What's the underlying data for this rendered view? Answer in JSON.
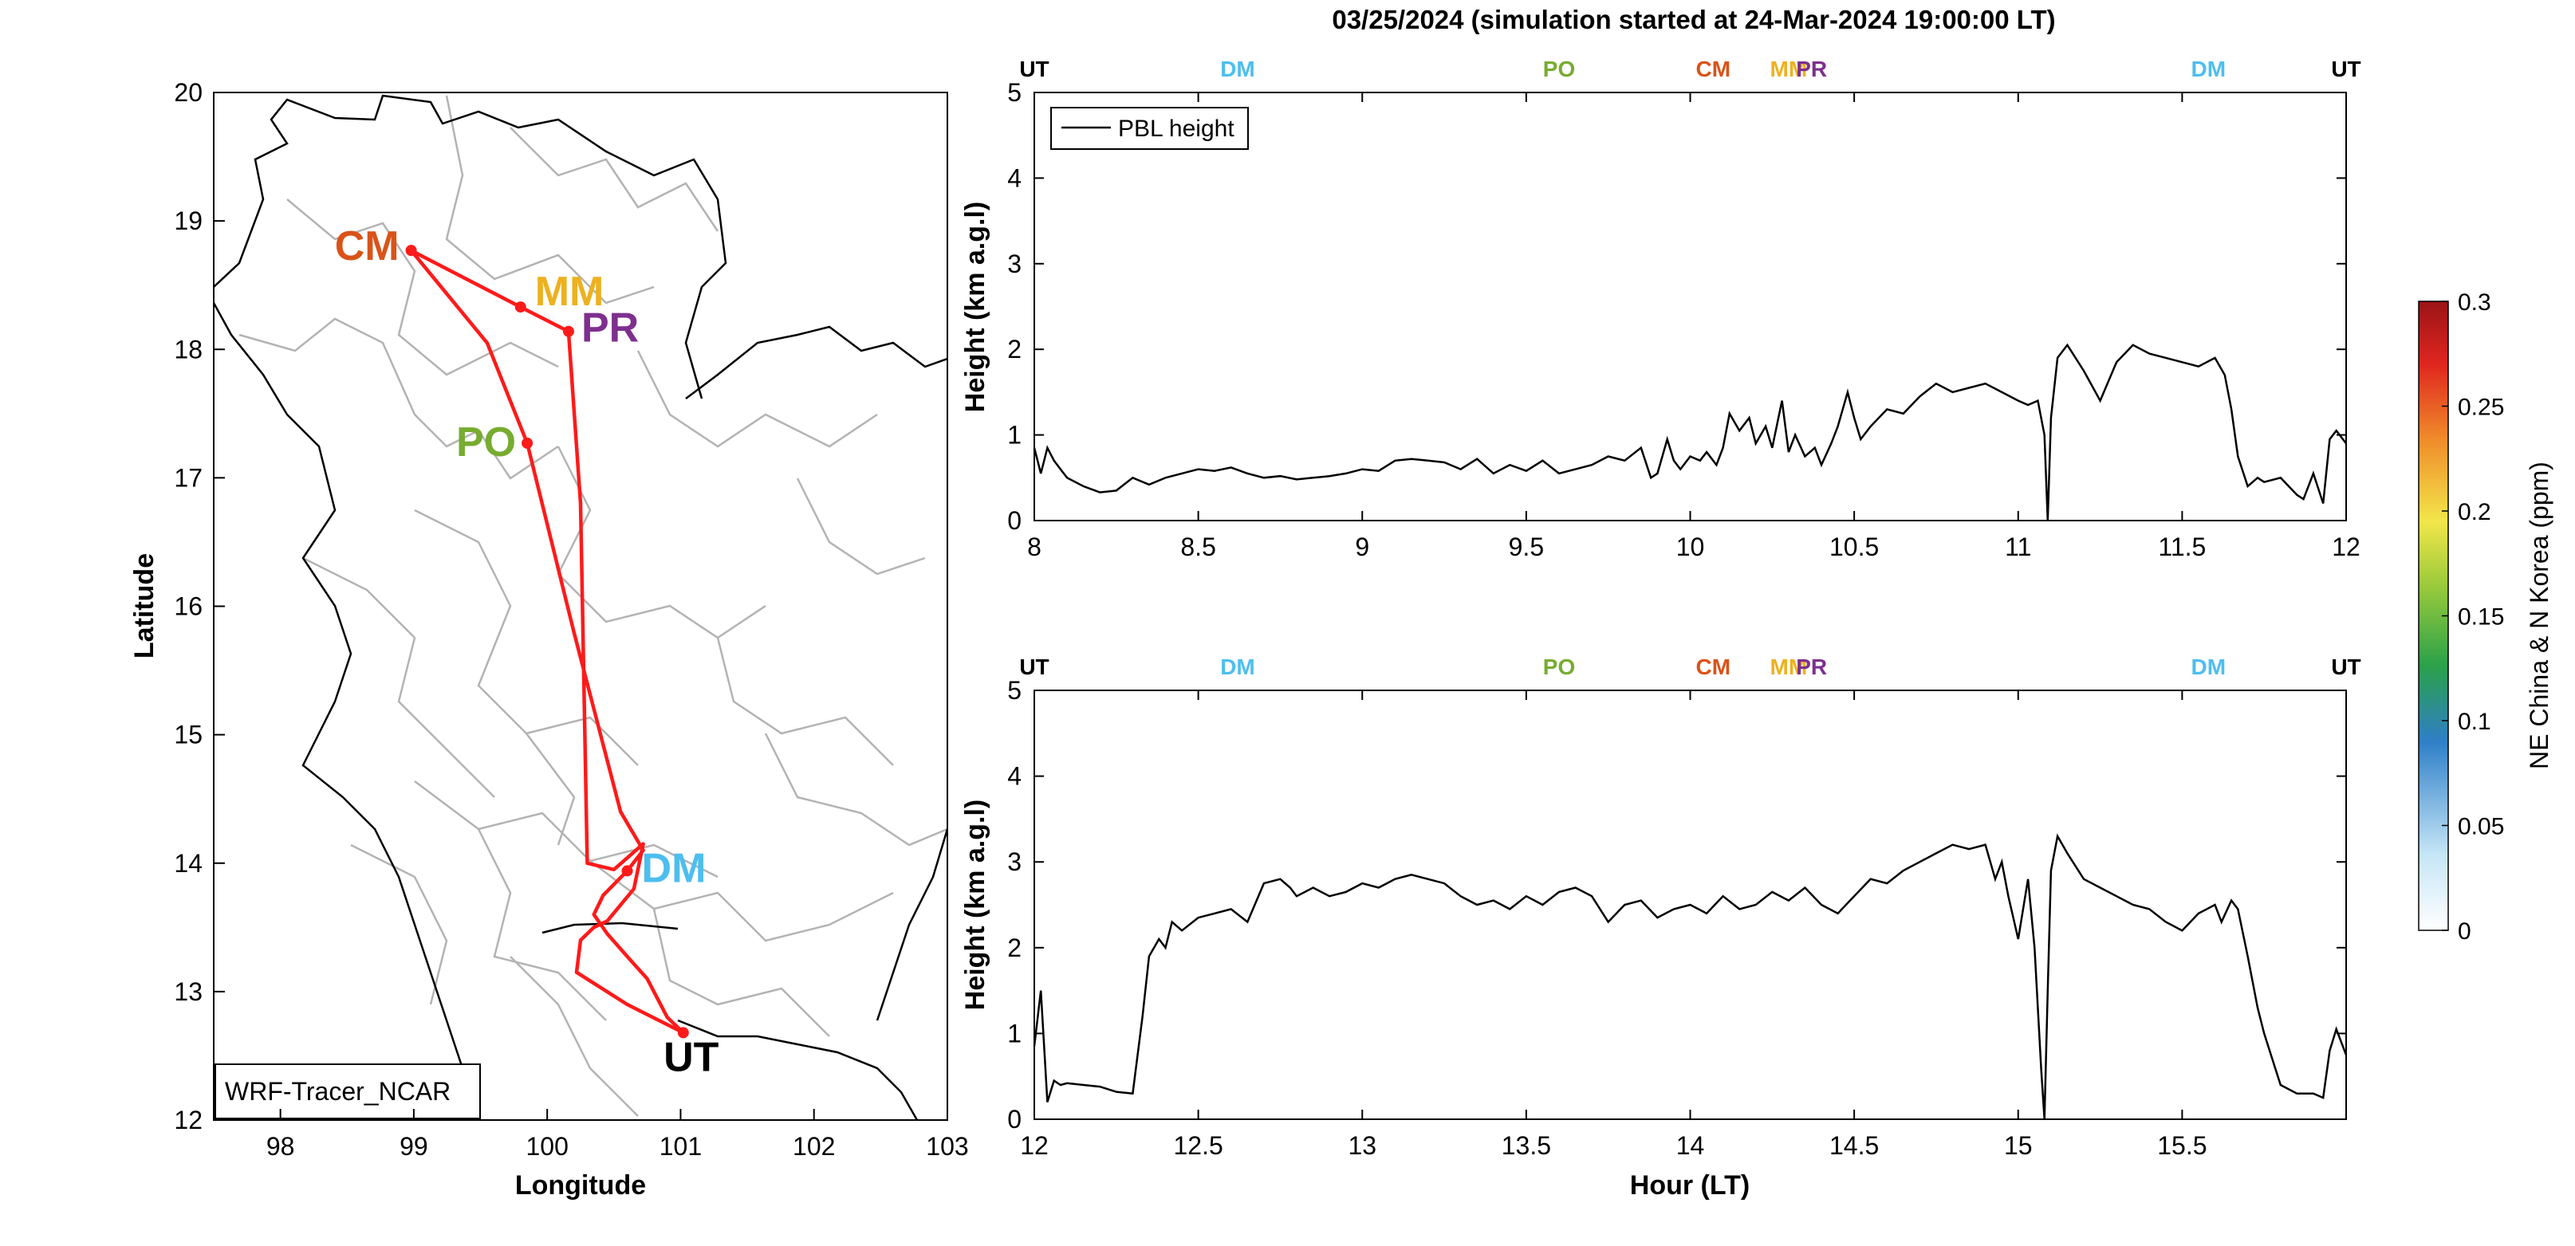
{
  "title": "03/25/2024 (simulation started at 24-Mar-2024 19:00:00 LT)",
  "colors": {
    "route": "#ff1a1a",
    "CM": "#d95319",
    "MM": "#edb120",
    "PR": "#7e2f8e",
    "PO": "#77ac30",
    "DM": "#4dbeee",
    "UT": "#000000",
    "border": "#b3b3b3",
    "coast": "#000000",
    "pbl": "#000000"
  },
  "chart_data": [
    {
      "type": "map-route",
      "xlabel": "Longitude",
      "ylabel": "Latitude",
      "xlim": [
        97.5,
        103
      ],
      "ylim": [
        12,
        20
      ],
      "xticks": [
        98,
        99,
        100,
        101,
        102,
        103
      ],
      "yticks": [
        12,
        13,
        14,
        15,
        16,
        17,
        18,
        19,
        20
      ],
      "annotation": "WRF-Tracer_NCAR",
      "sites": [
        {
          "code": "CM",
          "lon": 98.98,
          "lat": 18.77
        },
        {
          "code": "MM",
          "lon": 99.8,
          "lat": 18.33
        },
        {
          "code": "PR",
          "lon": 100.16,
          "lat": 18.14
        },
        {
          "code": "PO",
          "lon": 99.85,
          "lat": 17.27
        },
        {
          "code": "DM",
          "lon": 100.6,
          "lat": 13.94
        },
        {
          "code": "UT",
          "lon": 101.02,
          "lat": 12.68
        }
      ],
      "route": [
        [
          101.02,
          12.68
        ],
        [
          100.9,
          12.8
        ],
        [
          100.75,
          13.1
        ],
        [
          100.62,
          13.25
        ],
        [
          100.45,
          13.45
        ],
        [
          100.35,
          13.6
        ],
        [
          100.42,
          13.75
        ],
        [
          100.6,
          13.94
        ],
        [
          100.72,
          14.1
        ],
        [
          100.55,
          14.4
        ],
        [
          100.2,
          15.8
        ],
        [
          99.85,
          17.27
        ],
        [
          99.55,
          18.05
        ],
        [
          98.98,
          18.77
        ],
        [
          99.8,
          18.33
        ],
        [
          100.16,
          18.14
        ],
        [
          100.25,
          16.8
        ],
        [
          100.3,
          14.0
        ],
        [
          100.5,
          13.95
        ],
        [
          100.72,
          14.15
        ],
        [
          100.65,
          13.8
        ],
        [
          100.45,
          13.55
        ],
        [
          100.35,
          13.5
        ],
        [
          100.25,
          13.4
        ],
        [
          100.22,
          13.15
        ],
        [
          100.6,
          12.9
        ],
        [
          101.02,
          12.68
        ]
      ]
    },
    {
      "type": "line",
      "ylabel": "Height (km a.g.l)",
      "xlim": [
        8,
        12
      ],
      "ylim": [
        0,
        5
      ],
      "xticks": [
        8,
        8.5,
        9,
        9.5,
        10,
        10.5,
        11,
        11.5,
        12
      ],
      "yticks": [
        0,
        1,
        2,
        3,
        4,
        5
      ],
      "legend": "PBL height",
      "site_markers": [
        {
          "code": "UT",
          "x": 8
        },
        {
          "code": "DM",
          "x": 8.62
        },
        {
          "code": "PO",
          "x": 9.6
        },
        {
          "code": "CM",
          "x": 10.07
        },
        {
          "code": "MM",
          "x": 10.3
        },
        {
          "code": "PR",
          "x": 10.37
        },
        {
          "code": "DM",
          "x": 11.58
        },
        {
          "code": "UT",
          "x": 12
        }
      ],
      "series": [
        {
          "x": [
            8,
            8.02,
            8.04,
            8.06,
            8.08,
            8.1,
            8.15,
            8.2,
            8.25,
            8.3,
            8.35,
            8.4,
            8.45,
            8.5,
            8.55,
            8.6,
            8.65,
            8.7,
            8.75,
            8.8,
            8.85,
            8.9,
            8.95,
            9,
            9.05,
            9.1,
            9.15,
            9.2,
            9.25,
            9.3,
            9.35,
            9.4,
            9.45,
            9.5,
            9.55,
            9.6,
            9.65,
            9.7,
            9.75,
            9.8,
            9.85,
            9.88,
            9.9,
            9.93,
            9.95,
            9.97,
            10,
            10.03,
            10.05,
            10.08,
            10.1,
            10.12,
            10.15,
            10.18,
            10.2,
            10.23,
            10.25,
            10.28,
            10.3,
            10.32,
            10.35,
            10.38,
            10.4,
            10.43,
            10.45,
            10.48,
            10.5,
            10.52,
            10.55,
            10.6,
            10.65,
            10.7,
            10.75,
            10.8,
            10.85,
            10.9,
            10.95,
            11,
            11.03,
            11.06,
            11.08,
            11.09,
            11.1,
            11.12,
            11.15,
            11.2,
            11.25,
            11.3,
            11.35,
            11.4,
            11.45,
            11.5,
            11.55,
            11.6,
            11.63,
            11.65,
            11.67,
            11.7,
            11.73,
            11.75,
            11.8,
            11.85,
            11.87,
            11.9,
            11.93,
            11.95,
            11.97,
            12
          ],
          "y": [
            0.85,
            0.55,
            0.85,
            0.7,
            0.6,
            0.5,
            0.4,
            0.33,
            0.35,
            0.5,
            0.42,
            0.5,
            0.55,
            0.6,
            0.58,
            0.62,
            0.55,
            0.5,
            0.52,
            0.48,
            0.5,
            0.52,
            0.55,
            0.6,
            0.58,
            0.7,
            0.72,
            0.7,
            0.68,
            0.6,
            0.72,
            0.55,
            0.65,
            0.58,
            0.7,
            0.55,
            0.6,
            0.65,
            0.75,
            0.7,
            0.85,
            0.5,
            0.55,
            0.95,
            0.7,
            0.6,
            0.75,
            0.7,
            0.8,
            0.65,
            0.85,
            1.25,
            1.05,
            1.2,
            0.9,
            1.1,
            0.85,
            1.4,
            0.8,
            1.0,
            0.75,
            0.85,
            0.65,
            0.9,
            1.1,
            1.5,
            1.2,
            0.95,
            1.1,
            1.3,
            1.25,
            1.45,
            1.6,
            1.5,
            1.55,
            1.6,
            1.5,
            1.4,
            1.35,
            1.4,
            1.0,
            0.0,
            1.2,
            1.9,
            2.05,
            1.75,
            1.4,
            1.85,
            2.05,
            1.95,
            1.9,
            1.85,
            1.8,
            1.9,
            1.7,
            1.3,
            0.75,
            0.4,
            0.5,
            0.45,
            0.5,
            0.3,
            0.25,
            0.55,
            0.2,
            0.95,
            1.05,
            0.9
          ]
        }
      ]
    },
    {
      "type": "line",
      "ylabel": "Height (km a.g.l)",
      "xlabel": "Hour (LT)",
      "xlim": [
        12,
        16
      ],
      "ylim": [
        0,
        5
      ],
      "xticks": [
        12,
        12.5,
        13,
        13.5,
        14,
        14.5,
        15,
        15.5
      ],
      "yticks": [
        0,
        1,
        2,
        3,
        4,
        5
      ],
      "site_markers": [
        {
          "code": "UT",
          "x": 12
        },
        {
          "code": "DM",
          "x": 12.62
        },
        {
          "code": "PO",
          "x": 13.6
        },
        {
          "code": "CM",
          "x": 14.07
        },
        {
          "code": "MM",
          "x": 14.3
        },
        {
          "code": "PR",
          "x": 14.37
        },
        {
          "code": "DM",
          "x": 15.58
        },
        {
          "code": "UT",
          "x": 16
        }
      ],
      "series": [
        {
          "x": [
            12,
            12.02,
            12.04,
            12.06,
            12.08,
            12.1,
            12.15,
            12.2,
            12.25,
            12.3,
            12.33,
            12.35,
            12.38,
            12.4,
            12.42,
            12.45,
            12.5,
            12.55,
            12.6,
            12.65,
            12.7,
            12.75,
            12.78,
            12.8,
            12.85,
            12.9,
            12.95,
            13,
            13.05,
            13.1,
            13.15,
            13.2,
            13.25,
            13.3,
            13.35,
            13.4,
            13.45,
            13.5,
            13.55,
            13.6,
            13.65,
            13.7,
            13.75,
            13.8,
            13.85,
            13.9,
            13.95,
            14,
            14.05,
            14.1,
            14.15,
            14.2,
            14.25,
            14.3,
            14.35,
            14.4,
            14.45,
            14.5,
            14.55,
            14.6,
            14.65,
            14.7,
            14.75,
            14.8,
            14.85,
            14.9,
            14.93,
            14.95,
            14.97,
            15,
            15.03,
            15.05,
            15.07,
            15.08,
            15.09,
            15.1,
            15.12,
            15.15,
            15.2,
            15.25,
            15.3,
            15.35,
            15.4,
            15.45,
            15.5,
            15.55,
            15.6,
            15.62,
            15.65,
            15.67,
            15.7,
            15.73,
            15.75,
            15.8,
            15.85,
            15.9,
            15.93,
            15.95,
            15.97,
            16
          ],
          "y": [
            0.85,
            1.5,
            0.2,
            0.45,
            0.4,
            0.42,
            0.4,
            0.38,
            0.32,
            0.3,
            1.2,
            1.9,
            2.1,
            2.0,
            2.3,
            2.2,
            2.35,
            2.4,
            2.45,
            2.3,
            2.75,
            2.8,
            2.7,
            2.6,
            2.7,
            2.6,
            2.65,
            2.75,
            2.7,
            2.8,
            2.85,
            2.8,
            2.75,
            2.6,
            2.5,
            2.55,
            2.45,
            2.6,
            2.5,
            2.65,
            2.7,
            2.6,
            2.3,
            2.5,
            2.55,
            2.35,
            2.45,
            2.5,
            2.4,
            2.6,
            2.45,
            2.5,
            2.65,
            2.55,
            2.7,
            2.5,
            2.4,
            2.6,
            2.8,
            2.75,
            2.9,
            3.0,
            3.1,
            3.2,
            3.15,
            3.2,
            2.8,
            3.0,
            2.6,
            2.1,
            2.8,
            2.0,
            0.6,
            0.0,
            1.5,
            2.9,
            3.3,
            3.1,
            2.8,
            2.7,
            2.6,
            2.5,
            2.45,
            2.3,
            2.2,
            2.4,
            2.5,
            2.3,
            2.55,
            2.45,
            1.9,
            1.3,
            1.0,
            0.4,
            0.3,
            0.3,
            0.25,
            0.8,
            1.05,
            0.75
          ]
        }
      ]
    },
    {
      "type": "colorbar",
      "label": "NE China & N Korea (ppm)",
      "ylim": [
        0,
        0.3
      ],
      "tick_labels": [
        "0",
        "0.05",
        "0.1",
        "0.15",
        "0.2",
        "0.25",
        "0.3"
      ]
    }
  ]
}
